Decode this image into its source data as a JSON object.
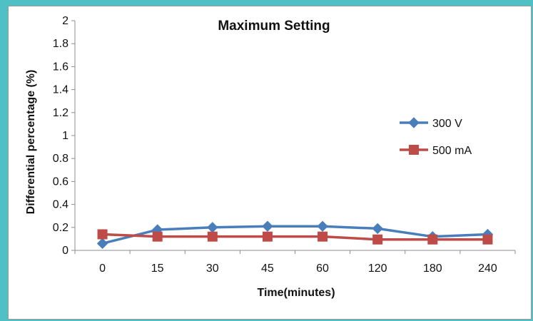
{
  "chart_data": {
    "type": "line",
    "title": "Maximum Setting",
    "xlabel": "Time(minutes)",
    "ylabel": "Differential percentage (%)",
    "categories": [
      "0",
      "15",
      "30",
      "45",
      "60",
      "120",
      "180",
      "240"
    ],
    "ylim": [
      0,
      2
    ],
    "yticks": [
      "0",
      "0.2",
      "0.4",
      "0.6",
      "0.8",
      "1",
      "1.2",
      "1.4",
      "1.6",
      "1.8",
      "2"
    ],
    "grid": false,
    "legend_position": "right",
    "series": [
      {
        "name": "300 V",
        "color": "#4a7ebb",
        "marker": "diamond",
        "values": [
          0.06,
          0.18,
          0.2,
          0.21,
          0.21,
          0.19,
          0.12,
          0.14
        ]
      },
      {
        "name": "500 mA",
        "color": "#be4b48",
        "marker": "square",
        "values": [
          0.14,
          0.12,
          0.12,
          0.12,
          0.12,
          0.095,
          0.095,
          0.095
        ]
      }
    ]
  }
}
